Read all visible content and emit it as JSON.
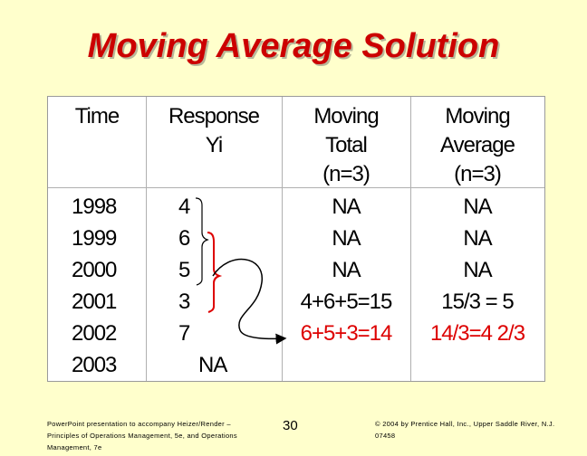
{
  "title": "Moving Average Solution",
  "headers": {
    "time": "Time",
    "response_1": "Response",
    "response_2": "Yi",
    "total_1": "Moving",
    "total_2": "Total",
    "total_3": "(n=3)",
    "avg_1": "Moving",
    "avg_2": "Average",
    "avg_3": "(n=3)"
  },
  "rows": [
    {
      "time": "1998",
      "response": "4",
      "total": "NA",
      "average": "NA"
    },
    {
      "time": "1999",
      "response": "6",
      "total": "NA",
      "average": "NA"
    },
    {
      "time": "2000",
      "response": "5",
      "total": "NA",
      "average": "NA"
    },
    {
      "time": "2001",
      "response": "3",
      "total": "4+6+5=15",
      "average": "15/3 = 5"
    },
    {
      "time": "2002",
      "response": "7",
      "total": "6+5+3=14",
      "average": "14/3=4 2/3"
    },
    {
      "time": "2003",
      "response": "NA",
      "total": "",
      "average": ""
    }
  ],
  "footer": {
    "left": "PowerPoint presentation to accompany Heizer/Render – Principles of Operations Management, 5e, and Operations Management, 7e",
    "page": "30",
    "right": "© 2004 by Prentice Hall, Inc., Upper Saddle River, N.J. 07458"
  },
  "colors": {
    "background": "#ffffcc",
    "title": "#cc0000",
    "highlight": "#dd0000"
  }
}
